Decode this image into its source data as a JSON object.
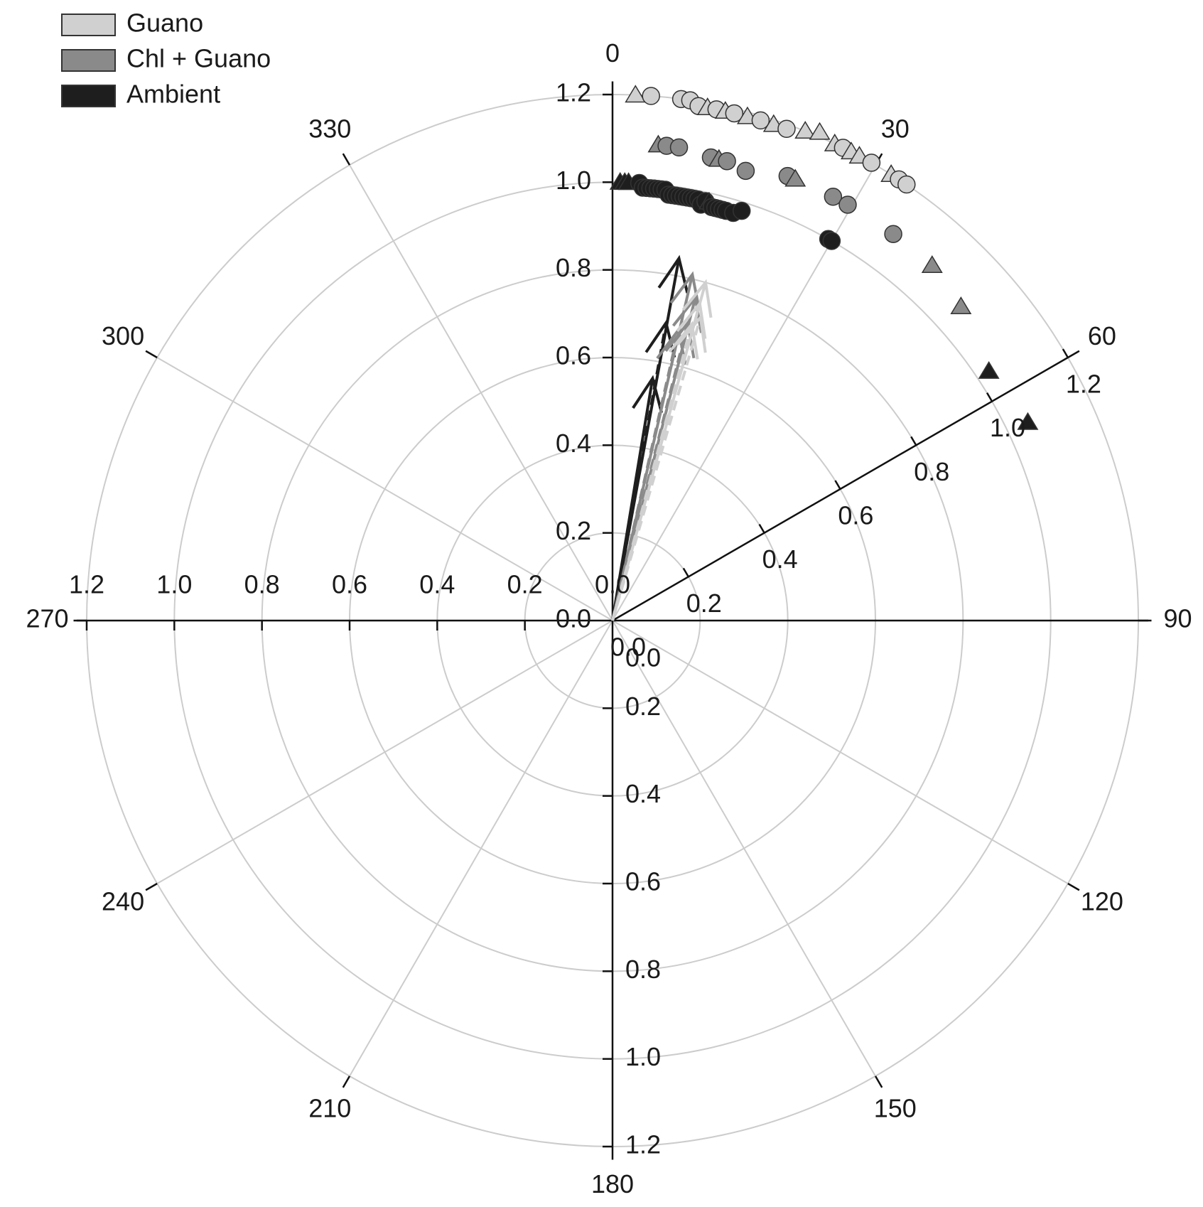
{
  "chart_data": {
    "type": "scatter",
    "subtype": "polar",
    "angular_axis": {
      "unit": "degrees",
      "direction": "clockwise",
      "zero_at": "top",
      "tick_labels": [
        "0",
        "30",
        "60",
        "90",
        "120",
        "150",
        "180",
        "210",
        "240",
        "270",
        "300",
        "330"
      ]
    },
    "radial_axis": {
      "range": [
        0,
        1.2
      ],
      "tick_labels": [
        "0.0",
        "0.2",
        "0.4",
        "0.6",
        "0.8",
        "1.0",
        "1.2"
      ]
    },
    "grid": true,
    "legend": {
      "placement": "top-left",
      "entries": [
        {
          "label": "Guano",
          "color": "#d0d0d0"
        },
        {
          "label": "Chl + Guano",
          "color": "#8a8a8a"
        },
        {
          "label": "Ambient",
          "color": "#1e1e1e"
        }
      ]
    },
    "series": [
      {
        "name": "Guano",
        "color": "#d0d0d0",
        "points": [
          {
            "theta": 2.5,
            "r": 1.2,
            "marker": "triangle"
          },
          {
            "theta": 4.2,
            "r": 1.2,
            "marker": "circle"
          },
          {
            "theta": 7.5,
            "r": 1.2,
            "marker": "circle"
          },
          {
            "theta": 8.5,
            "r": 1.2,
            "marker": "circle"
          },
          {
            "theta": 9.5,
            "r": 1.19,
            "marker": "circle"
          },
          {
            "theta": 10.5,
            "r": 1.19,
            "marker": "triangle"
          },
          {
            "theta": 11.5,
            "r": 1.19,
            "marker": "circle"
          },
          {
            "theta": 12.5,
            "r": 1.19,
            "marker": "triangle"
          },
          {
            "theta": 13.5,
            "r": 1.19,
            "marker": "circle"
          },
          {
            "theta": 15.0,
            "r": 1.19,
            "marker": "triangle"
          },
          {
            "theta": 16.5,
            "r": 1.19,
            "marker": "circle"
          },
          {
            "theta": 18.0,
            "r": 1.19,
            "marker": "triangle"
          },
          {
            "theta": 19.5,
            "r": 1.19,
            "marker": "circle"
          },
          {
            "theta": 21.5,
            "r": 1.2,
            "marker": "triangle"
          },
          {
            "theta": 23.0,
            "r": 1.21,
            "marker": "triangle"
          },
          {
            "theta": 25.0,
            "r": 1.2,
            "marker": "triangle"
          },
          {
            "theta": 26.0,
            "r": 1.2,
            "marker": "circle"
          },
          {
            "theta": 27.0,
            "r": 1.2,
            "marker": "triangle"
          },
          {
            "theta": 28.0,
            "r": 1.2,
            "marker": "triangle"
          },
          {
            "theta": 29.5,
            "r": 1.2,
            "marker": "circle"
          },
          {
            "theta": 32.0,
            "r": 1.2,
            "marker": "triangle"
          },
          {
            "theta": 33.0,
            "r": 1.2,
            "marker": "circle"
          },
          {
            "theta": 34.0,
            "r": 1.2,
            "marker": "circle"
          }
        ]
      },
      {
        "name": "Chl + Guano",
        "color": "#8a8a8a",
        "points": [
          {
            "theta": 5.5,
            "r": 1.09,
            "marker": "triangle"
          },
          {
            "theta": 6.5,
            "r": 1.09,
            "marker": "circle"
          },
          {
            "theta": 8.0,
            "r": 1.09,
            "marker": "circle"
          },
          {
            "theta": 12.0,
            "r": 1.08,
            "marker": "circle"
          },
          {
            "theta": 13.0,
            "r": 1.08,
            "marker": "triangle"
          },
          {
            "theta": 14.0,
            "r": 1.08,
            "marker": "circle"
          },
          {
            "theta": 16.5,
            "r": 1.07,
            "marker": "circle"
          },
          {
            "theta": 21.5,
            "r": 1.09,
            "marker": "circle"
          },
          {
            "theta": 22.5,
            "r": 1.09,
            "marker": "triangle"
          },
          {
            "theta": 27.5,
            "r": 1.09,
            "marker": "circle"
          },
          {
            "theta": 29.5,
            "r": 1.09,
            "marker": "circle"
          },
          {
            "theta": 36.0,
            "r": 1.09,
            "marker": "circle"
          },
          {
            "theta": 42.0,
            "r": 1.09,
            "marker": "triangle"
          },
          {
            "theta": 48.0,
            "r": 1.07,
            "marker": "triangle"
          }
        ]
      },
      {
        "name": "Ambient",
        "color": "#1e1e1e",
        "points": [
          {
            "theta": 1.0,
            "r": 1.0,
            "marker": "triangle"
          },
          {
            "theta": 1.6,
            "r": 1.0,
            "marker": "triangle"
          },
          {
            "theta": 2.1,
            "r": 1.0,
            "marker": "triangle"
          },
          {
            "theta": 3.5,
            "r": 1.0,
            "marker": "circle"
          },
          {
            "theta": 4.0,
            "r": 0.99,
            "marker": "circle"
          },
          {
            "theta": 4.5,
            "r": 0.99,
            "marker": "circle"
          },
          {
            "theta": 5.0,
            "r": 0.99,
            "marker": "circle"
          },
          {
            "theta": 5.5,
            "r": 0.99,
            "marker": "circle"
          },
          {
            "theta": 6.0,
            "r": 0.99,
            "marker": "circle"
          },
          {
            "theta": 6.5,
            "r": 0.99,
            "marker": "circle"
          },
          {
            "theta": 7.0,
            "r": 0.99,
            "marker": "circle"
          },
          {
            "theta": 7.5,
            "r": 0.98,
            "marker": "circle"
          },
          {
            "theta": 8.0,
            "r": 0.98,
            "marker": "circle"
          },
          {
            "theta": 8.5,
            "r": 0.98,
            "marker": "circle"
          },
          {
            "theta": 9.0,
            "r": 0.98,
            "marker": "circle"
          },
          {
            "theta": 9.5,
            "r": 0.98,
            "marker": "circle"
          },
          {
            "theta": 10.0,
            "r": 0.98,
            "marker": "circle"
          },
          {
            "theta": 10.5,
            "r": 0.98,
            "marker": "circle"
          },
          {
            "theta": 11.0,
            "r": 0.98,
            "marker": "circle"
          },
          {
            "theta": 11.5,
            "r": 0.98,
            "marker": "circle"
          },
          {
            "theta": 12.0,
            "r": 0.97,
            "marker": "circle"
          },
          {
            "theta": 12.5,
            "r": 0.98,
            "marker": "circle"
          },
          {
            "theta": 13.0,
            "r": 0.98,
            "marker": "triangle"
          },
          {
            "theta": 13.5,
            "r": 0.97,
            "marker": "circle"
          },
          {
            "theta": 14.0,
            "r": 0.97,
            "marker": "circle"
          },
          {
            "theta": 14.5,
            "r": 0.97,
            "marker": "circle"
          },
          {
            "theta": 15.0,
            "r": 0.97,
            "marker": "circle"
          },
          {
            "theta": 15.5,
            "r": 0.97,
            "marker": "circle"
          },
          {
            "theta": 16.5,
            "r": 0.97,
            "marker": "circle"
          },
          {
            "theta": 17.5,
            "r": 0.98,
            "marker": "circle"
          },
          {
            "theta": 29.5,
            "r": 1.0,
            "marker": "circle"
          },
          {
            "theta": 30.0,
            "r": 1.0,
            "marker": "circle"
          },
          {
            "theta": 56.5,
            "r": 1.03,
            "marker": "triangle"
          },
          {
            "theta": 64.5,
            "r": 1.05,
            "marker": "triangle"
          }
        ]
      }
    ],
    "vectors": [
      {
        "color": "#1e1e1e",
        "style": "solid",
        "theta": 10.4,
        "r": 0.84
      },
      {
        "color": "#1e1e1e",
        "style": "dashed",
        "theta": 10.2,
        "r": 0.69
      },
      {
        "color": "#1e1e1e",
        "style": "solid",
        "theta": 9.4,
        "r": 0.56
      },
      {
        "color": "#8a8a8a",
        "style": "solid",
        "theta": 13.0,
        "r": 0.81
      },
      {
        "color": "#8a8a8a",
        "style": "solid",
        "theta": 14.4,
        "r": 0.76
      },
      {
        "color": "#8a8a8a",
        "style": "dashed",
        "theta": 12.8,
        "r": 0.68
      },
      {
        "color": "#8a8a8a",
        "style": "dashed",
        "theta": 14.2,
        "r": 0.7
      },
      {
        "color": "#d0d0d0",
        "style": "solid",
        "theta": 15.4,
        "r": 0.8
      },
      {
        "color": "#d0d0d0",
        "style": "dashed",
        "theta": 15.4,
        "r": 0.75
      },
      {
        "color": "#d0d0d0",
        "style": "dashed",
        "theta": 16.2,
        "r": 0.72
      },
      {
        "color": "#d0d0d0",
        "style": "dashed",
        "theta": 15.0,
        "r": 0.7
      }
    ]
  }
}
